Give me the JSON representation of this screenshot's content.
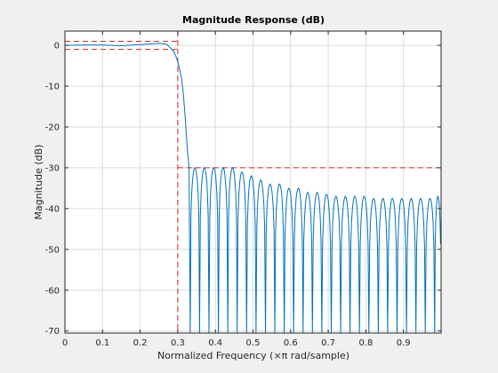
{
  "chart_data": {
    "type": "line",
    "title": "Magnitude Response (dB)",
    "xlabel": "Normalized Frequency (×π rad/sample)",
    "ylabel": "Magnitude (dB)",
    "xlim": [
      0,
      1
    ],
    "ylim": [
      -70.5,
      3.5
    ],
    "grid": true,
    "x_ticks": [
      0,
      0.1,
      0.2,
      0.3,
      0.4,
      0.5,
      0.6,
      0.7,
      0.8,
      0.9
    ],
    "x_tick_labels": [
      "0",
      "0.1",
      "0.2",
      "0.3",
      "0.4",
      "0.5",
      "0.6",
      "0.7",
      "0.8",
      "0.9"
    ],
    "y_ticks": [
      0,
      -10,
      -20,
      -30,
      -40,
      -50,
      -60,
      -70
    ],
    "y_tick_labels": [
      "0",
      "-10",
      "-20",
      "-30",
      "-40",
      "-50",
      "-60",
      "-70"
    ],
    "colors": {
      "response": "#0072bd",
      "mask": "#d62728",
      "axes_bg": "#ffffff",
      "figure_bg": "#f0f0f0",
      "grid": "#dcdcdc"
    },
    "series": [
      {
        "passband": {
          "x": [
            0,
            0.05,
            0.1,
            0.15,
            0.2,
            0.25,
            0.27,
            0.29,
            0.3,
            0.305,
            0.31,
            0.315,
            0.32,
            0.325,
            0.33
          ],
          "y": [
            0,
            0.1,
            0.1,
            -0.1,
            0.2,
            0.5,
            0.3,
            -1.5,
            -4,
            -6,
            -8,
            -12,
            -18,
            -25,
            -30
          ]
        },
        "stopband_nulls": [
          0.333,
          0.358,
          0.383,
          0.408,
          0.433,
          0.458,
          0.483,
          0.508,
          0.533,
          0.558,
          0.583,
          0.608,
          0.633,
          0.658,
          0.683,
          0.708,
          0.733,
          0.758,
          0.783,
          0.808,
          0.833,
          0.858,
          0.883,
          0.908,
          0.933,
          0.958,
          0.983
        ],
        "stopband_peaks": [
          -30,
          -30,
          -30,
          -30,
          -30,
          -31,
          -32,
          -33,
          -34,
          -34,
          -35,
          -35,
          -36,
          -36,
          -36.5,
          -37,
          -37,
          -37,
          -37,
          -37.5,
          -37.5,
          -37.5,
          -37.5,
          -37.5,
          -37.5,
          -37.5,
          -37
        ]
      }
    ],
    "mask": {
      "passband_upper": 1,
      "passband_lower": -1,
      "passband_edge": 0.3,
      "stopband_level": -30
    }
  }
}
